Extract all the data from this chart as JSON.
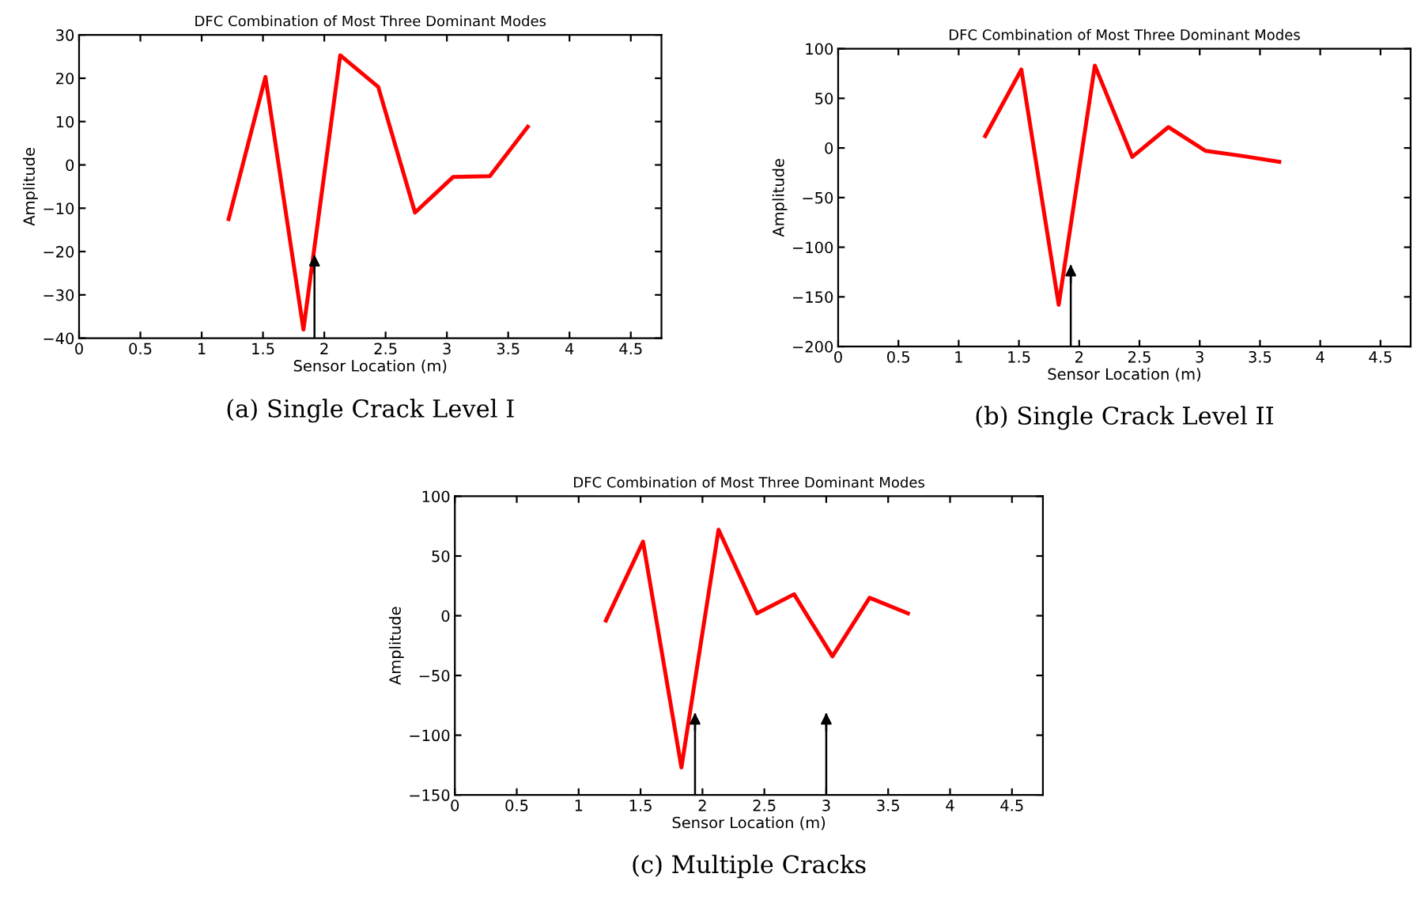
{
  "chart_data": [
    {
      "type": "line",
      "title": "DFC Combination of Most Three Dominant Modes",
      "xlabel": "Sensor Location (m)",
      "ylabel": "Amplitude",
      "x": [
        1.22,
        1.52,
        1.83,
        2.13,
        2.44,
        2.74,
        3.05,
        3.35,
        3.66
      ],
      "series": [
        {
          "color": "#ff0000",
          "values": [
            -12.5,
            20.3,
            -38,
            25.3,
            18,
            -11,
            -2.8,
            -2.6,
            8.8
          ]
        }
      ],
      "xlim": [
        0,
        4.75
      ],
      "xticks": [
        0,
        0.5,
        1,
        1.5,
        2,
        2.5,
        3,
        3.5,
        4,
        4.5
      ],
      "ylim": [
        -40,
        30
      ],
      "yticks": [
        -40,
        -30,
        -20,
        -10,
        0,
        10,
        20,
        30
      ],
      "grid": false,
      "legend": false,
      "marker": "none",
      "line_style": "solid",
      "ref_lines": [
        {
          "axis": "x",
          "value": 1.92,
          "color": "#000000"
        }
      ],
      "annotations": [
        "(a) Single Crack Level I"
      ]
    },
    {
      "type": "line",
      "title": "DFC Combination of Most Three Dominant Modes",
      "xlabel": "Sensor Location (m)",
      "ylabel": "Amplitude",
      "x": [
        1.22,
        1.52,
        1.83,
        2.13,
        2.44,
        2.74,
        3.05,
        3.35,
        3.66
      ],
      "series": [
        {
          "color": "#ff0000",
          "values": [
            12,
            79,
            -158,
            83,
            -9,
            21,
            -3,
            -8,
            -14
          ]
        }
      ],
      "xlim": [
        0,
        4.75
      ],
      "xticks": [
        0,
        0.5,
        1,
        1.5,
        2,
        2.5,
        3,
        3.5,
        4,
        4.5
      ],
      "ylim": [
        -200,
        100
      ],
      "yticks": [
        -200,
        -150,
        -100,
        -50,
        0,
        50,
        100
      ],
      "grid": false,
      "legend": false,
      "marker": "none",
      "line_style": "solid",
      "ref_lines": [
        {
          "axis": "x",
          "value": 1.93,
          "color": "#000000"
        }
      ],
      "annotations": [
        "(b) Single Crack Level II"
      ]
    },
    {
      "type": "line",
      "title": "DFC Combination of Most Three Dominant Modes",
      "xlabel": "Sensor Location (m)",
      "ylabel": "Amplitude",
      "x": [
        1.22,
        1.52,
        1.83,
        2.13,
        2.44,
        2.74,
        3.05,
        3.35,
        3.66
      ],
      "series": [
        {
          "color": "#ff0000",
          "values": [
            -4,
            62,
            -127,
            72,
            2,
            18,
            -34,
            15,
            2
          ]
        }
      ],
      "xlim": [
        0,
        4.75
      ],
      "xticks": [
        0,
        0.5,
        1,
        1.5,
        2,
        2.5,
        3,
        3.5,
        4,
        4.5
      ],
      "ylim": [
        -150,
        100
      ],
      "yticks": [
        -150,
        -100,
        -50,
        0,
        50,
        100
      ],
      "grid": false,
      "legend": false,
      "marker": "none",
      "line_style": "solid",
      "ref_lines": [
        {
          "axis": "x",
          "value": 1.94,
          "color": "#000000"
        },
        {
          "axis": "x",
          "value": 3.0,
          "color": "#000000"
        }
      ],
      "annotations": [
        "(c) Multiple Cracks"
      ]
    }
  ]
}
